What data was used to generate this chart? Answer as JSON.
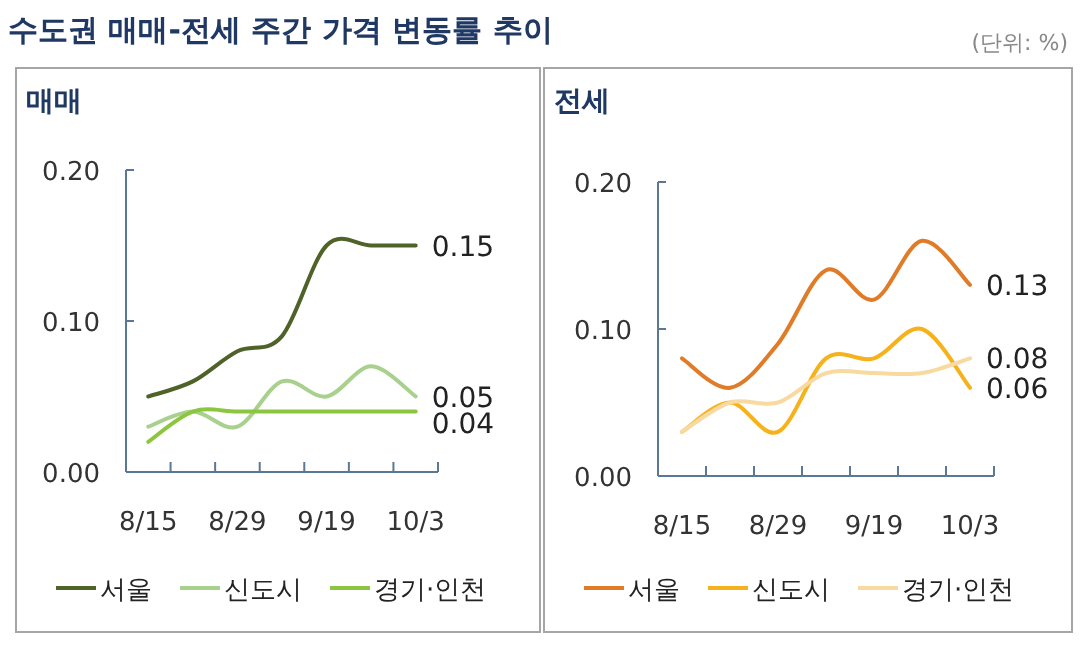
{
  "chart_data": [
    {
      "type": "line",
      "title": "수도권 매매-전세 주간 가격 변동률 추이",
      "subtitle": "매매",
      "annotations": [
        "(단위: %)"
      ],
      "categories": [
        "8/15",
        null,
        "8/29",
        null,
        "9/19",
        null,
        "10/3"
      ],
      "ylim": [
        0,
        0.2
      ],
      "yticks": [
        {
          "value": 0,
          "label": "0.00"
        },
        {
          "value": 0.1,
          "label": "0.10"
        },
        {
          "value": 0.2,
          "label": "0.20"
        }
      ],
      "legend": "bottom",
      "series": [
        {
          "name": "서울",
          "color": "#4f6228",
          "values": [
            0.05,
            0.06,
            0.08,
            0.09,
            0.15,
            0.15,
            0.15
          ],
          "value_labels": [
            null,
            null,
            null,
            null,
            null,
            null,
            "0.15"
          ]
        },
        {
          "name": "신도시",
          "color": "#a9d18e",
          "values": [
            0.03,
            0.04,
            0.03,
            0.06,
            0.05,
            0.07,
            0.05
          ],
          "value_labels": [
            null,
            null,
            null,
            null,
            null,
            null,
            "0.05"
          ]
        },
        {
          "name": "경기·인천",
          "color": "#8cc63f",
          "values": [
            0.02,
            0.04,
            0.04,
            0.04,
            0.04,
            0.04,
            0.04
          ],
          "value_labels": [
            null,
            null,
            null,
            null,
            null,
            null,
            "0.04"
          ]
        }
      ]
    },
    {
      "type": "line",
      "subtitle": "전세",
      "categories": [
        "8/15",
        null,
        "8/29",
        null,
        "9/19",
        null,
        "10/3"
      ],
      "ylim": [
        0,
        0.2
      ],
      "yticks": [
        {
          "value": 0,
          "label": "0.00"
        },
        {
          "value": 0.1,
          "label": "0.10"
        },
        {
          "value": 0.2,
          "label": "0.20"
        }
      ],
      "legend": "bottom",
      "series": [
        {
          "name": "서울",
          "color": "#e07b28",
          "values": [
            0.08,
            0.06,
            0.09,
            0.14,
            0.12,
            0.16,
            0.13
          ],
          "value_labels": [
            null,
            null,
            null,
            null,
            null,
            null,
            "0.13"
          ]
        },
        {
          "name": "신도시",
          "color": "#f5b21b",
          "values": [
            0.03,
            0.05,
            0.03,
            0.08,
            0.08,
            0.1,
            0.06
          ],
          "value_labels": [
            null,
            null,
            null,
            null,
            null,
            null,
            "0.06"
          ]
        },
        {
          "name": "경기·인천",
          "color": "#f8d9a0",
          "values": [
            0.03,
            0.05,
            0.05,
            0.07,
            0.07,
            0.07,
            0.08
          ],
          "value_labels": [
            null,
            null,
            null,
            null,
            null,
            null,
            "0.08"
          ]
        }
      ]
    }
  ]
}
